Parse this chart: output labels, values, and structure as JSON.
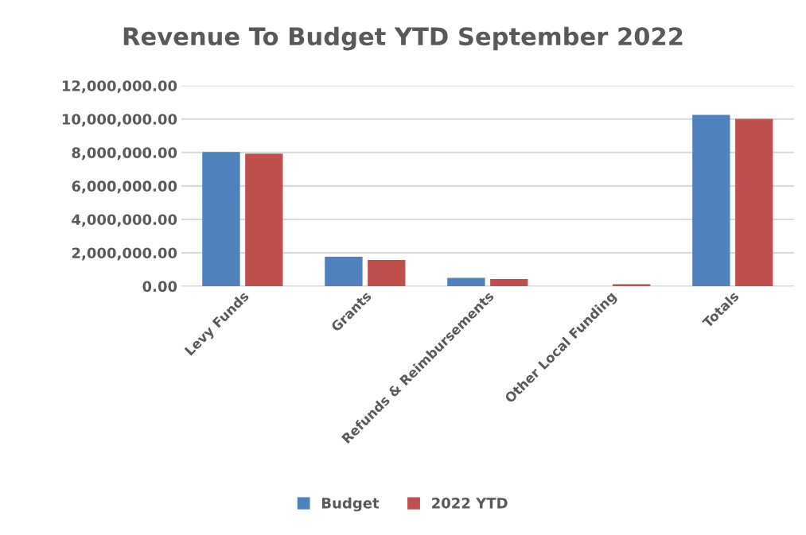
{
  "chart_data": {
    "type": "bar",
    "title": "Revenue To Budget YTD September 2022",
    "categories": [
      "Levy Funds",
      "Grants",
      "Refunds & Reimbursements",
      "Other Local Funding",
      "Totals"
    ],
    "series": [
      {
        "name": "Budget",
        "color": "#4f81bd",
        "values": [
          8000000,
          1730000,
          470000,
          null,
          10220000
        ]
      },
      {
        "name": "2022 YTD",
        "color": "#c0504d",
        "values": [
          7900000,
          1540000,
          410000,
          100000,
          9980000
        ]
      }
    ],
    "ylim": [
      0,
      12000000
    ],
    "yticks": [
      {
        "value": 0,
        "label": "0.00"
      },
      {
        "value": 2000000,
        "label": "2,000,000.00"
      },
      {
        "value": 4000000,
        "label": "4,000,000.00"
      },
      {
        "value": 6000000,
        "label": "6,000,000.00"
      },
      {
        "value": 8000000,
        "label": "8,000,000.00"
      },
      {
        "value": 10000000,
        "label": "10,000,000.00"
      },
      {
        "value": 12000000,
        "label": "12,000,000.00"
      }
    ],
    "grid": "y",
    "legend": "bottom"
  }
}
